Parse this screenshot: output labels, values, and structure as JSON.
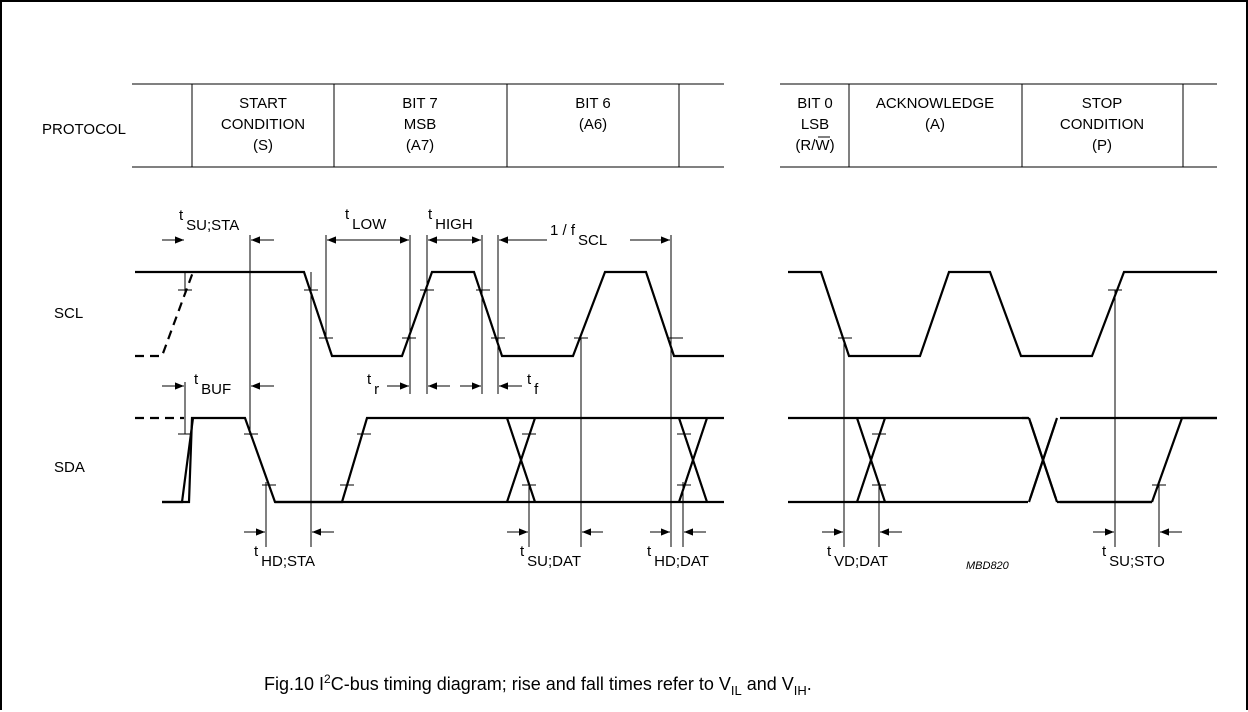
{
  "protocol_label": "PROTOCOL",
  "fields_left": [
    {
      "lines": [
        "START",
        "CONDITION",
        "(S)"
      ]
    },
    {
      "lines": [
        "BIT 7",
        "MSB",
        "(A7)"
      ]
    },
    {
      "lines": [
        "BIT 6",
        "(A6)"
      ]
    }
  ],
  "fields_right": [
    {
      "lines": [
        "BIT 0",
        "LSB",
        "(R/W)"
      ]
    },
    {
      "lines": [
        "ACKNOWLEDGE",
        "(A)"
      ]
    },
    {
      "lines": [
        "STOP",
        "CONDITION",
        "(P)"
      ]
    }
  ],
  "signals": {
    "scl": "SCL",
    "sda": "SDA"
  },
  "timing_labels": {
    "t_su_sta": {
      "t": "t",
      "sub": "SU;STA"
    },
    "t_low": {
      "t": "t",
      "sub": "LOW"
    },
    "t_high": {
      "t": "t",
      "sub": "HIGH"
    },
    "one_over_fscl": {
      "t": "1 / f",
      "sub": "SCL"
    },
    "t_buf": {
      "t": "t",
      "sub": "BUF"
    },
    "t_r": {
      "t": "t",
      "sub": "r"
    },
    "t_f": {
      "t": "t",
      "sub": "f"
    },
    "t_hd_sta": {
      "t": "t",
      "sub": "HD;STA"
    },
    "t_su_dat": {
      "t": "t",
      "sub": "SU;DAT"
    },
    "t_hd_dat": {
      "t": "t",
      "sub": "HD;DAT"
    },
    "t_vd_dat": {
      "t": "t",
      "sub": "VD;DAT"
    },
    "t_su_sto": {
      "t": "t",
      "sub": "SU;STO"
    }
  },
  "figure_code": "MBD820",
  "caption": {
    "prefix": "Fig.10  I",
    "sup": "2",
    "mid": "C-bus timing diagram; rise and fall times refer to V",
    "sub1": "IL",
    "and": " and V",
    "sub2": "IH",
    "end": "."
  }
}
